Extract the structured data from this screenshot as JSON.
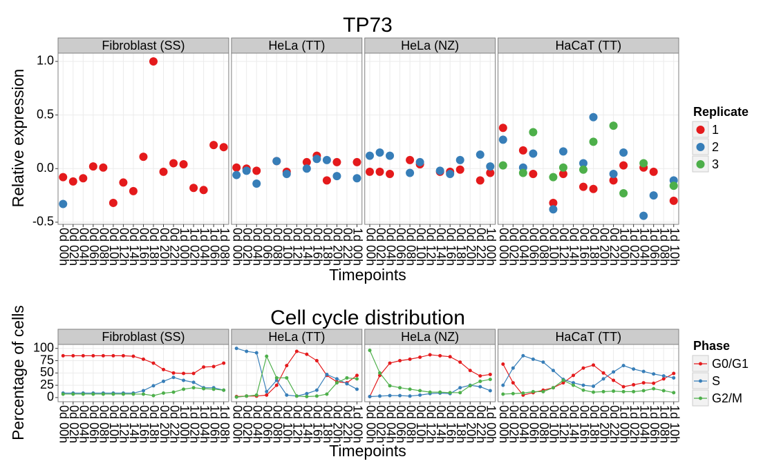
{
  "chart_data": [
    {
      "type": "scatter",
      "title": "TP73",
      "xlabel": "Timepoints",
      "ylabel": "Relative expression",
      "legend_title": "Replicate",
      "legend": [
        {
          "name": "1",
          "color": "#e41a1c"
        },
        {
          "name": "2",
          "color": "#377eb8"
        },
        {
          "name": "3",
          "color": "#4daf4a"
        }
      ],
      "ylim": [
        -0.52,
        1.077
      ],
      "yticks": [
        -0.5,
        {
          "value": 0,
          "label": "0.0"
        },
        0.5,
        {
          "value": 1,
          "label": "1.0"
        }
      ],
      "grid": true,
      "facets": [
        {
          "name": "Fibroblast (SS)",
          "categories": [
            "0d 00h",
            "0d 02h",
            "0d 04h",
            "0d 06h",
            "0d 08h",
            "0d 10h",
            "0d 12h",
            "0d 14h",
            "0d 16h",
            "0d 18h",
            "0d 20h",
            "0d 22h",
            "1d 00h",
            "1d 02h",
            "1d 04h",
            "1d 06h",
            "1d 08h"
          ],
          "values": [
            [
              -0.08,
              -0.12,
              -0.09,
              0.02,
              0.01,
              -0.32,
              -0.13,
              -0.21,
              0.11,
              1.0,
              -0.03,
              0.05,
              0.04,
              -0.18,
              -0.2,
              0.22,
              0.2
            ],
            [
              -0.33,
              null,
              null,
              null,
              null,
              null,
              null,
              null,
              null,
              null,
              null,
              null,
              null,
              null,
              null,
              null,
              null
            ],
            [
              null,
              null,
              null,
              null,
              null,
              null,
              null,
              null,
              null,
              null,
              null,
              null,
              null,
              null,
              null,
              null,
              null
            ]
          ]
        },
        {
          "name": "HeLa (TT)",
          "categories": [
            "0d 00h",
            "0d 02h",
            "0d 04h",
            "0d 06h",
            "0d 08h",
            "0d 10h",
            "0d 12h",
            "0d 14h",
            "0d 16h",
            "0d 18h",
            "0d 20h",
            "0d 22h",
            "1d 00h"
          ],
          "values": [
            [
              0.01,
              0.0,
              -0.02,
              null,
              0.07,
              -0.03,
              null,
              0.06,
              0.12,
              -0.11,
              0.06,
              null,
              0.06
            ],
            [
              -0.06,
              -0.02,
              -0.14,
              null,
              0.07,
              -0.05,
              null,
              0.0,
              0.09,
              0.08,
              -0.07,
              null,
              -0.09
            ],
            [
              null,
              null,
              null,
              null,
              null,
              null,
              null,
              null,
              null,
              null,
              null,
              null,
              null
            ]
          ]
        },
        {
          "name": "HeLa (NZ)",
          "categories": [
            "0d 00h",
            "0d 02h",
            "0d 04h",
            "0d 06h",
            "0d 08h",
            "0d 10h",
            "0d 12h",
            "0d 14h",
            "0d 16h",
            "0d 18h",
            "0d 20h",
            "0d 22h",
            "1d 00h"
          ],
          "values": [
            [
              -0.03,
              -0.03,
              -0.05,
              null,
              0.08,
              0.04,
              null,
              -0.03,
              -0.03,
              -0.01,
              null,
              -0.11,
              -0.04
            ],
            [
              0.12,
              0.15,
              0.12,
              null,
              -0.04,
              0.06,
              null,
              -0.02,
              -0.05,
              0.08,
              null,
              0.13,
              0.02
            ],
            [
              null,
              null,
              null,
              null,
              null,
              null,
              null,
              null,
              null,
              null,
              null,
              null,
              null
            ]
          ]
        },
        {
          "name": "HaCaT (TT)",
          "categories": [
            "0d 00h",
            "0d 02h",
            "0d 04h",
            "0d 06h",
            "0d 08h",
            "0d 10h",
            "0d 12h",
            "0d 14h",
            "0d 16h",
            "0d 18h",
            "0d 20h",
            "0d 22h",
            "1d 00h",
            "1d 02h",
            "1d 04h",
            "1d 06h",
            "1d 08h",
            "1d 10h"
          ],
          "values": [
            [
              0.38,
              null,
              0.17,
              -0.05,
              null,
              -0.32,
              -0.05,
              null,
              -0.17,
              -0.19,
              null,
              -0.11,
              0.03,
              null,
              0.01,
              -0.03,
              null,
              -0.3
            ],
            [
              0.27,
              null,
              0.01,
              0.14,
              null,
              -0.38,
              0.16,
              null,
              0.05,
              0.48,
              null,
              -0.05,
              0.15,
              null,
              -0.44,
              -0.25,
              null,
              -0.11
            ],
            [
              0.03,
              null,
              -0.04,
              0.34,
              null,
              -0.08,
              0.01,
              null,
              -0.01,
              0.25,
              null,
              0.4,
              -0.23,
              null,
              0.05,
              null,
              null,
              -0.16
            ]
          ]
        }
      ]
    },
    {
      "type": "line",
      "title": "Cell cycle distribution",
      "xlabel": "Timepoints",
      "ylabel": "Percentage of cells",
      "legend_title": "Phase",
      "legend": [
        {
          "name": "G0/G1",
          "color": "#e41a1c"
        },
        {
          "name": "S",
          "color": "#377eb8"
        },
        {
          "name": "G2/M",
          "color": "#4daf4a"
        }
      ],
      "ylim": [
        -8.5,
        108
      ],
      "yticks": [
        0,
        25,
        50,
        75,
        100
      ],
      "grid": true,
      "facets": [
        {
          "name": "Fibroblast (SS)",
          "categories": [
            "0d 00h",
            "0d 02h",
            "0d 04h",
            "0d 06h",
            "0d 08h",
            "0d 10h",
            "0d 12h",
            "0d 14h",
            "0d 16h",
            "0d 18h",
            "0d 20h",
            "0d 22h",
            "1d 00h",
            "1d 02h",
            "1d 04h",
            "1d 06h",
            "1d 08h"
          ],
          "values": [
            [
              85,
              85,
              85,
              85,
              85,
              85,
              85,
              84,
              78,
              70,
              57,
              50,
              49,
              49,
              62,
              63,
              70
            ],
            [
              9,
              9,
              9,
              9,
              9,
              9,
              9,
              9,
              14,
              24,
              33,
              41,
              35,
              31,
              20,
              20,
              15
            ],
            [
              7,
              7,
              7,
              7,
              7,
              7,
              7,
              7,
              7,
              4,
              9,
              11,
              17,
              20,
              18,
              17,
              15
            ]
          ]
        },
        {
          "name": "HeLa (TT)",
          "categories": [
            "0d 00h",
            "0d 02h",
            "0d 04h",
            "0d 06h",
            "0d 08h",
            "0d 10h",
            "0d 12h",
            "0d 14h",
            "0d 16h",
            "0d 18h",
            "0d 20h",
            "0d 22h",
            "1d 00h"
          ],
          "values": [
            [
              2,
              3,
              3,
              5,
              25,
              65,
              94,
              88,
              75,
              45,
              32,
              30,
              45
            ],
            [
              100,
              94,
              91,
              12,
              35,
              5,
              3,
              8,
              15,
              47,
              38,
              28,
              17
            ],
            [
              1,
              3,
              5,
              84,
              40,
              40,
              3,
              2,
              3,
              7,
              30,
              40,
              38
            ]
          ]
        },
        {
          "name": "HeLa (NZ)",
          "categories": [
            "0d 00h",
            "0d 02h",
            "0d 04h",
            "0d 06h",
            "0d 08h",
            "0d 10h",
            "0d 12h",
            "0d 14h",
            "0d 16h",
            "0d 18h",
            "0d 20h",
            "0d 22h",
            "1d 00h"
          ],
          "values": [
            [
              2,
              45,
              70,
              75,
              78,
              82,
              87,
              85,
              83,
              72,
              55,
              44,
              47
            ],
            [
              2,
              3,
              4,
              4,
              3,
              5,
              8,
              9,
              8,
              20,
              25,
              22,
              14
            ],
            [
              96,
              50,
              24,
              20,
              17,
              14,
              11,
              11,
              10,
              10,
              24,
              33,
              37
            ]
          ]
        },
        {
          "name": "HaCaT (TT)",
          "categories": [
            "0d 00h",
            "0d 02h",
            "0d 04h",
            "0d 06h",
            "0d 08h",
            "0d 10h",
            "0d 12h",
            "0d 14h",
            "0d 16h",
            "0d 18h",
            "0d 20h",
            "0d 22h",
            "1d 00h",
            "1d 02h",
            "1d 04h",
            "1d 06h",
            "1d 08h",
            "1d 10h"
          ],
          "values": [
            [
              68,
              30,
              5,
              10,
              15,
              20,
              30,
              45,
              60,
              66,
              50,
              35,
              22,
              26,
              30,
              29,
              38,
              49
            ],
            [
              25,
              60,
              85,
              78,
              72,
              55,
              37,
              30,
              25,
              23,
              38,
              52,
              65,
              58,
              53,
              48,
              44,
              40
            ],
            [
              7,
              8,
              9,
              12,
              12,
              20,
              35,
              25,
              15,
              11,
              12,
              13,
              12,
              12,
              14,
              18,
              14,
              10
            ]
          ]
        }
      ]
    }
  ]
}
